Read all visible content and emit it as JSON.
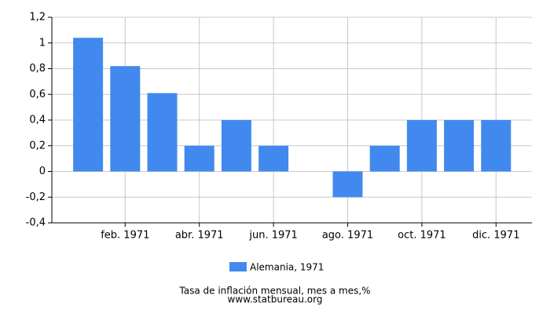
{
  "chart_data": {
    "type": "bar",
    "categories": [
      null,
      "feb. 1971",
      null,
      "abr. 1971",
      null,
      "jun. 1971",
      null,
      "ago. 1971",
      null,
      "oct. 1971",
      null,
      "dic. 1971"
    ],
    "series": [
      {
        "name": "Alemania, 1971",
        "color": "#4189ee",
        "values": [
          1.04,
          0.82,
          0.61,
          0.2,
          0.4,
          0.2,
          0,
          -0.2,
          0.2,
          0.4,
          0.4,
          0.4
        ]
      }
    ],
    "ylim": [
      -0.4,
      1.2
    ],
    "yticks": [
      {
        "value": -0.4,
        "label": "-0,4"
      },
      {
        "value": -0.2,
        "label": "-0,2"
      },
      0,
      {
        "value": 0.2,
        "label": "0,2"
      },
      {
        "value": 0.4,
        "label": "0,4"
      },
      {
        "value": 0.6,
        "label": "0,6"
      },
      {
        "value": 0.8,
        "label": "0,8"
      },
      1,
      {
        "value": 1.2,
        "label": "1,2"
      }
    ],
    "grid": true,
    "caption": "Tasa de inflación mensual, mes a mes,%",
    "source": "www.statbureau.org"
  }
}
